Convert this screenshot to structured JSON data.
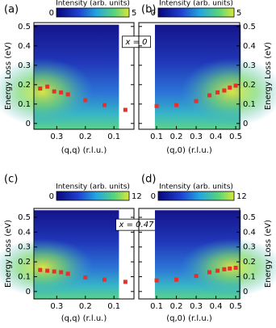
{
  "chart_data": [
    {
      "type": "scatter",
      "panel_label": "(a)",
      "x_label": "(q,q) (r.l.u.)",
      "y_label": "Energy Loss (eV)",
      "colorbar": {
        "label": "Intensity (arb. units)",
        "ticks": [
          0,
          5
        ]
      },
      "annotation": "x = 0",
      "x": [
        0.358,
        0.333,
        0.309,
        0.285,
        0.261,
        0.2,
        0.133,
        0.06
      ],
      "values": [
        0.18,
        0.19,
        0.165,
        0.16,
        0.15,
        0.12,
        0.095,
        0.07
      ],
      "color": "#e8302a",
      "xlim": [
        0.38,
        0.03
      ],
      "xticks": [
        0.3,
        0.2,
        0.1
      ],
      "ylim": [
        -0.03,
        0.52
      ],
      "yticks": [
        0,
        0.1,
        0.2,
        0.3,
        0.4,
        0.5
      ]
    },
    {
      "type": "scatter",
      "panel_label": "(b)",
      "x_label": "(q,0) (r.l.u.)",
      "y_label": "Energy Loss (eV)",
      "colorbar": {
        "label": "Intensity (arb. units)",
        "ticks": [
          0,
          5
        ]
      },
      "x": [
        0.1,
        0.2,
        0.3,
        0.367,
        0.408,
        0.442,
        0.47,
        0.5
      ],
      "values": [
        0.09,
        0.095,
        0.115,
        0.145,
        0.16,
        0.17,
        0.185,
        0.195
      ],
      "color": "#e8302a",
      "xlim": [
        0.01,
        0.52
      ],
      "xticks": [
        0.1,
        0.2,
        0.3,
        0.4,
        0.5
      ],
      "ylim": [
        -0.03,
        0.52
      ],
      "yticks": [
        0,
        0.1,
        0.2,
        0.3,
        0.4,
        0.5
      ]
    },
    {
      "type": "scatter",
      "panel_label": "(c)",
      "x_label": "(q,q) (r.l.u.)",
      "y_label": "Energy Loss (eV)",
      "colorbar": {
        "label": "Intensity (arb. units)",
        "ticks": [
          0,
          12
        ]
      },
      "annotation": "x = 0.47",
      "x": [
        0.358,
        0.333,
        0.309,
        0.285,
        0.261,
        0.2,
        0.133,
        0.06
      ],
      "values": [
        0.145,
        0.14,
        0.135,
        0.13,
        0.12,
        0.095,
        0.08,
        0.065
      ],
      "color": "#e8302a",
      "xlim": [
        0.38,
        0.03
      ],
      "xticks": [
        0.3,
        0.2,
        0.1
      ],
      "ylim": [
        -0.05,
        0.56
      ],
      "yticks": [
        0,
        0.1,
        0.2,
        0.3,
        0.4,
        0.5
      ]
    },
    {
      "type": "scatter",
      "panel_label": "(d)",
      "x_label": "(q,0) (r.l.u.)",
      "y_label": "Energy Loss (eV)",
      "colorbar": {
        "label": "Intensity (arb. units)",
        "ticks": [
          0,
          12
        ]
      },
      "x": [
        0.1,
        0.2,
        0.3,
        0.367,
        0.408,
        0.442,
        0.47,
        0.5
      ],
      "values": [
        0.075,
        0.08,
        0.105,
        0.13,
        0.14,
        0.15,
        0.155,
        0.16
      ],
      "color": "#e8302a",
      "xlim": [
        0.01,
        0.52
      ],
      "xticks": [
        0.1,
        0.2,
        0.3,
        0.4,
        0.5
      ],
      "ylim": [
        -0.05,
        0.56
      ],
      "yticks": [
        0,
        0.1,
        0.2,
        0.3,
        0.4,
        0.5
      ]
    }
  ]
}
